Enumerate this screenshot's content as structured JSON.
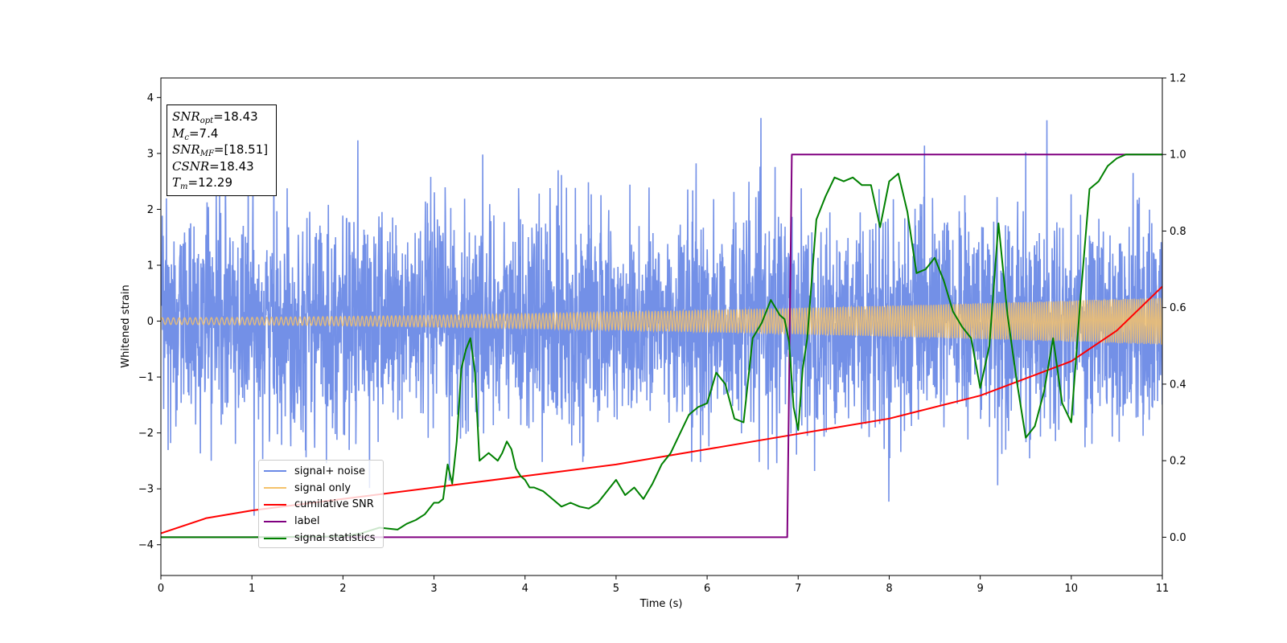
{
  "chart_data": {
    "type": "line",
    "xlabel": "Time (s)",
    "ylabel": "Whitened strain",
    "xlim": [
      0,
      11
    ],
    "ylim_left": [
      -4.55,
      4.35
    ],
    "ylim_right": [
      -0.1,
      1.2
    ],
    "x_ticks": [
      0,
      1,
      2,
      3,
      4,
      5,
      6,
      7,
      8,
      9,
      10,
      11
    ],
    "y_ticks_left": [
      -4,
      -3,
      -2,
      -1,
      0,
      1,
      2,
      3,
      4
    ],
    "y_ticks_right": [
      0.0,
      0.2,
      0.4,
      0.6,
      0.8,
      1.0,
      1.2
    ],
    "grid": false,
    "legend_placement": "lower-left",
    "annotation": {
      "snr_opt": "18.43",
      "mc": "7.4",
      "snr_mf": "[18.51]",
      "csnr": "18.43",
      "tm": "12.29"
    },
    "series": [
      {
        "name": "signal+ noise",
        "color": "#6b8ae6",
        "axis": "left",
        "description_stats": {
          "mean": 0,
          "std": 0.95,
          "max": 3.95,
          "min": -4.17
        }
      },
      {
        "name": "signal only",
        "color": "#f5c26b",
        "axis": "left",
        "amplitude_envelope": {
          "x": [
            0,
            11
          ],
          "y": [
            0.06,
            0.42
          ]
        }
      },
      {
        "name": "cumilative SNR",
        "color": "#ff0000",
        "axis": "right",
        "x": [
          0,
          0.5,
          1,
          2,
          3,
          4,
          5,
          6,
          7,
          8,
          9,
          10,
          10.5,
          11
        ],
        "y": [
          0.01,
          0.05,
          0.07,
          0.1,
          0.13,
          0.16,
          0.19,
          0.23,
          0.27,
          0.31,
          0.37,
          0.46,
          0.54,
          0.655
        ]
      },
      {
        "name": "label",
        "color": "#800080",
        "axis": "right",
        "x": [
          0,
          6.88,
          6.93,
          11
        ],
        "y": [
          0.0,
          0.0,
          1.0,
          1.0
        ]
      },
      {
        "name": "signal statistics",
        "color": "#008000",
        "axis": "right",
        "x": [
          0,
          1,
          2.0,
          2.2,
          2.4,
          2.6,
          2.7,
          2.8,
          2.9,
          3.0,
          3.05,
          3.1,
          3.15,
          3.2,
          3.25,
          3.3,
          3.35,
          3.4,
          3.45,
          3.5,
          3.55,
          3.6,
          3.65,
          3.7,
          3.75,
          3.8,
          3.85,
          3.9,
          3.95,
          4.0,
          4.05,
          4.1,
          4.2,
          4.3,
          4.4,
          4.5,
          4.6,
          4.7,
          4.8,
          4.9,
          5.0,
          5.1,
          5.2,
          5.3,
          5.4,
          5.5,
          5.6,
          5.7,
          5.8,
          5.9,
          6.0,
          6.1,
          6.2,
          6.3,
          6.4,
          6.5,
          6.6,
          6.7,
          6.8,
          6.85,
          6.9,
          6.95,
          7.0,
          7.05,
          7.1,
          7.2,
          7.3,
          7.4,
          7.5,
          7.6,
          7.7,
          7.8,
          7.9,
          8.0,
          8.1,
          8.2,
          8.3,
          8.4,
          8.5,
          8.6,
          8.7,
          8.8,
          8.9,
          9.0,
          9.1,
          9.2,
          9.3,
          9.4,
          9.5,
          9.6,
          9.7,
          9.8,
          9.9,
          10.0,
          10.1,
          10.2,
          10.3,
          10.4,
          10.5,
          10.6,
          10.7,
          10.8,
          10.9,
          11.0
        ],
        "y": [
          0.0,
          0.0,
          0.002,
          0.01,
          0.025,
          0.02,
          0.035,
          0.045,
          0.06,
          0.09,
          0.09,
          0.1,
          0.19,
          0.14,
          0.25,
          0.44,
          0.49,
          0.52,
          0.43,
          0.2,
          0.21,
          0.22,
          0.21,
          0.2,
          0.22,
          0.25,
          0.23,
          0.18,
          0.16,
          0.15,
          0.13,
          0.13,
          0.12,
          0.1,
          0.08,
          0.09,
          0.08,
          0.075,
          0.09,
          0.12,
          0.15,
          0.11,
          0.13,
          0.1,
          0.14,
          0.19,
          0.22,
          0.27,
          0.32,
          0.34,
          0.35,
          0.43,
          0.4,
          0.31,
          0.3,
          0.52,
          0.56,
          0.62,
          0.58,
          0.57,
          0.51,
          0.34,
          0.28,
          0.44,
          0.52,
          0.83,
          0.89,
          0.94,
          0.93,
          0.94,
          0.92,
          0.92,
          0.81,
          0.93,
          0.95,
          0.85,
          0.69,
          0.7,
          0.73,
          0.67,
          0.59,
          0.55,
          0.52,
          0.39,
          0.5,
          0.82,
          0.58,
          0.41,
          0.26,
          0.29,
          0.38,
          0.52,
          0.35,
          0.3,
          0.62,
          0.91,
          0.93,
          0.97,
          0.99,
          1.0,
          1.0,
          1.0,
          1.0,
          1.0
        ]
      }
    ]
  }
}
